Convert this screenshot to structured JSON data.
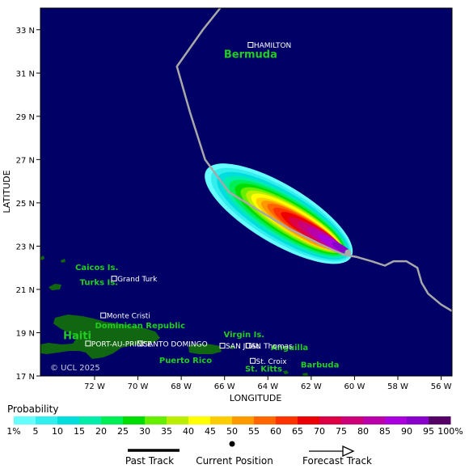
{
  "map": {
    "ylabel": "LATITUDE",
    "xlabel": "LONGITUDE",
    "lat_range": [
      17,
      34
    ],
    "lon_range": [
      -74.5,
      -55.5
    ],
    "lat_ticks": [
      {
        "value": 33,
        "label": "33 N"
      },
      {
        "value": 31,
        "label": "31 N"
      },
      {
        "value": 29,
        "label": "29 N"
      },
      {
        "value": 27,
        "label": "27 N"
      },
      {
        "value": 25,
        "label": "25 N"
      },
      {
        "value": 23,
        "label": "23 N"
      },
      {
        "value": 21,
        "label": "21 N"
      },
      {
        "value": 19,
        "label": "19 N"
      },
      {
        "value": 17,
        "label": "17 N"
      }
    ],
    "lon_ticks": [
      {
        "value": -72,
        "label": "72 W"
      },
      {
        "value": -70,
        "label": "70 W"
      },
      {
        "value": -68,
        "label": "68 W"
      },
      {
        "value": -66,
        "label": "66 W"
      },
      {
        "value": -64,
        "label": "64 W"
      },
      {
        "value": -62,
        "label": "62 W"
      },
      {
        "value": -60,
        "label": "60 W"
      },
      {
        "value": -58,
        "label": "58 W"
      },
      {
        "value": -56,
        "label": "56 W"
      }
    ],
    "copyright": "© UCL 2025",
    "colors": {
      "ocean": "#000066",
      "land": "#116611",
      "region_label": "#22cc22",
      "track": "#a8a8a8",
      "city": "#ffffff"
    },
    "regions": [
      {
        "name": "Bermuda",
        "lon": -64.8,
        "lat": 31.7,
        "size": 13
      },
      {
        "name": "Caicos Is.",
        "lon": -71.9,
        "lat": 21.9,
        "size": 10
      },
      {
        "name": "Turks Is.",
        "lon": -71.8,
        "lat": 21.2,
        "size": 10
      },
      {
        "name": "Haiti",
        "lon": -72.8,
        "lat": 18.7,
        "size": 13
      },
      {
        "name": "Dominican Republic",
        "lon": -69.9,
        "lat": 19.2,
        "size": 10
      },
      {
        "name": "Puerto Rico",
        "lon": -67.8,
        "lat": 17.6,
        "size": 10
      },
      {
        "name": "Virgin Is.",
        "lon": -65.1,
        "lat": 18.8,
        "size": 10
      },
      {
        "name": "Anguilla",
        "lon": -63.0,
        "lat": 18.2,
        "size": 10
      },
      {
        "name": "St. Kitts",
        "lon": -64.2,
        "lat": 17.2,
        "size": 10
      },
      {
        "name": "Barbuda",
        "lon": -61.6,
        "lat": 17.4,
        "size": 10
      }
    ],
    "cities": [
      {
        "name": "HAMILTON",
        "lon": -64.8,
        "lat": 32.3
      },
      {
        "name": "Grand Turk",
        "lon": -71.1,
        "lat": 21.5
      },
      {
        "name": "Monte Cristi",
        "lon": -71.6,
        "lat": 19.8
      },
      {
        "name": "SANTO DOMINGO",
        "lon": -69.9,
        "lat": 18.5
      },
      {
        "name": "PORT-AU-PRINCE",
        "lon": -72.3,
        "lat": 18.5
      },
      {
        "name": "SAN JUAN",
        "lon": -66.1,
        "lat": 18.4
      },
      {
        "name": "St. Thomas",
        "lon": -64.9,
        "lat": 18.4
      },
      {
        "name": "St. Croix",
        "lon": -64.7,
        "lat": 17.7
      }
    ],
    "track": [
      {
        "lon": -55.5,
        "lat": 20.0
      },
      {
        "lon": -56.0,
        "lat": 20.3
      },
      {
        "lon": -56.6,
        "lat": 20.8
      },
      {
        "lon": -56.9,
        "lat": 21.3
      },
      {
        "lon": -57.1,
        "lat": 22.0
      },
      {
        "lon": -57.6,
        "lat": 22.3
      },
      {
        "lon": -58.2,
        "lat": 22.3
      },
      {
        "lon": -58.6,
        "lat": 22.1
      },
      {
        "lon": -59.2,
        "lat": 22.3
      },
      {
        "lon": -59.9,
        "lat": 22.5
      },
      {
        "lon": -60.5,
        "lat": 22.6
      },
      {
        "lon": -61.6,
        "lat": 23.1
      },
      {
        "lon": -63.0,
        "lat": 23.8
      },
      {
        "lon": -64.5,
        "lat": 24.7
      },
      {
        "lon": -65.8,
        "lat": 25.5
      },
      {
        "lon": -66.9,
        "lat": 27.0
      },
      {
        "lon": -67.6,
        "lat": 29.2
      },
      {
        "lon": -68.2,
        "lat": 31.3
      },
      {
        "lon": -67.0,
        "lat": 33.0
      },
      {
        "lon": -66.2,
        "lat": 34.0
      }
    ],
    "current_position": {
      "lon": -60.3,
      "lat": 22.7
    },
    "probability_swath": [
      {
        "level": 1,
        "lon": -63.5,
        "lat": 24.5,
        "along": 3.9,
        "across": 1.35
      },
      {
        "level": 5,
        "lon": -63.4,
        "lat": 24.45,
        "along": 3.7,
        "across": 1.2
      },
      {
        "level": 10,
        "lon": -63.3,
        "lat": 24.4,
        "along": 3.5,
        "across": 1.08
      },
      {
        "level": 15,
        "lon": -63.2,
        "lat": 24.35,
        "along": 3.3,
        "across": 0.97
      },
      {
        "level": 20,
        "lon": -63.1,
        "lat": 24.3,
        "along": 3.1,
        "across": 0.87
      },
      {
        "level": 25,
        "lon": -63.0,
        "lat": 24.25,
        "along": 2.9,
        "across": 0.78
      },
      {
        "level": 30,
        "lon": -62.9,
        "lat": 24.2,
        "along": 2.72,
        "across": 0.7
      },
      {
        "level": 35,
        "lon": -62.8,
        "lat": 24.15,
        "along": 2.55,
        "across": 0.63
      },
      {
        "level": 40,
        "lon": -62.7,
        "lat": 24.1,
        "along": 2.4,
        "across": 0.57
      },
      {
        "level": 45,
        "lon": -62.6,
        "lat": 24.0,
        "along": 2.25,
        "across": 0.51
      },
      {
        "level": 50,
        "lon": -62.5,
        "lat": 23.95,
        "along": 2.1,
        "across": 0.46
      },
      {
        "level": 55,
        "lon": -62.35,
        "lat": 23.9,
        "along": 1.95,
        "across": 0.41
      },
      {
        "level": 60,
        "lon": -62.2,
        "lat": 23.8,
        "along": 1.8,
        "across": 0.37
      },
      {
        "level": 65,
        "lon": -62.0,
        "lat": 23.7,
        "along": 1.62,
        "across": 0.33
      },
      {
        "level": 70,
        "lon": -61.8,
        "lat": 23.55,
        "along": 1.45,
        "across": 0.29
      },
      {
        "level": 75,
        "lon": -61.55,
        "lat": 23.45,
        "along": 1.25,
        "across": 0.25
      },
      {
        "level": 80,
        "lon": -61.3,
        "lat": 23.3,
        "along": 1.05,
        "across": 0.21
      },
      {
        "level": 85,
        "lon": -61.0,
        "lat": 23.1,
        "along": 0.8,
        "across": 0.18
      },
      {
        "level": 90,
        "lon": -60.6,
        "lat": 22.9,
        "along": 0.5,
        "across": 0.15
      }
    ]
  },
  "legend": {
    "title": "Probability",
    "labels": [
      "1%",
      "5",
      "10",
      "15",
      "20",
      "25",
      "30",
      "35",
      "40",
      "45",
      "50",
      "55",
      "60",
      "65",
      "70",
      "75",
      "80",
      "85",
      "90",
      "95",
      "100%"
    ],
    "colors": [
      "#66ffff",
      "#33eeee",
      "#00dddd",
      "#00eeaa",
      "#00ee55",
      "#00dd00",
      "#66ee00",
      "#bbee00",
      "#ffff00",
      "#ffcc00",
      "#ff9900",
      "#ff6600",
      "#ff3300",
      "#ee0000",
      "#dd0044",
      "#cc0077",
      "#bb00aa",
      "#aa00dd",
      "#8800cc",
      "#550066"
    ],
    "past_track": "Past Track",
    "current_position": "Current Position",
    "forecast_track": "Forecast Track"
  }
}
